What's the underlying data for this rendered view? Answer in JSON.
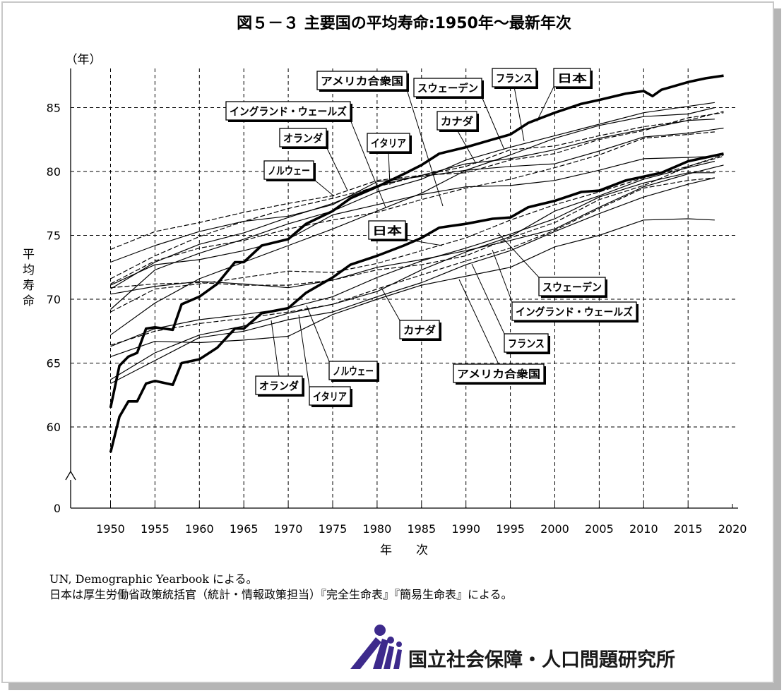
{
  "chart_data": {
    "type": "line",
    "title": "図５－３ 主要国の平均寿命:1950年～最新年次",
    "ylabel": "平均寿命",
    "ylabel_unit": "（年）",
    "xlabel": "年　　次",
    "xlim": [
      1946,
      2020
    ],
    "ylim": [
      0,
      88
    ],
    "axis_break": true,
    "grid": true,
    "x_ticks": [
      1950,
      1955,
      1960,
      1965,
      1970,
      1975,
      1980,
      1985,
      1990,
      1995,
      2000,
      2005,
      2010,
      2015,
      2020
    ],
    "y_ticks": [
      0,
      60,
      65,
      70,
      75,
      80,
      85
    ],
    "series": [
      {
        "name": "日本",
        "sex": "female",
        "style": "bold",
        "x": [
          1950,
          1951,
          1952,
          1953,
          1954,
          1955,
          1957,
          1958,
          1960,
          1962,
          1964,
          1965,
          1967,
          1970,
          1972,
          1975,
          1977,
          1980,
          1983,
          1985,
          1987,
          1990,
          1993,
          1995,
          1997,
          2000,
          2003,
          2005,
          2008,
          2010,
          2011,
          2012,
          2015,
          2017,
          2019
        ],
        "y": [
          61.5,
          64.8,
          65.5,
          65.8,
          67.7,
          67.8,
          67.6,
          69.6,
          70.2,
          71.2,
          72.9,
          72.9,
          74.2,
          74.7,
          75.9,
          76.9,
          77.9,
          78.8,
          79.8,
          80.5,
          81.4,
          81.9,
          82.5,
          82.9,
          83.8,
          84.6,
          85.3,
          85.6,
          86.1,
          86.3,
          85.9,
          86.4,
          87.0,
          87.3,
          87.5
        ]
      },
      {
        "name": "日本",
        "sex": "male",
        "style": "bold",
        "x": [
          1950,
          1951,
          1952,
          1953,
          1954,
          1955,
          1957,
          1958,
          1960,
          1962,
          1964,
          1965,
          1967,
          1970,
          1972,
          1975,
          1977,
          1980,
          1983,
          1985,
          1987,
          1990,
          1993,
          1995,
          1997,
          2000,
          2003,
          2005,
          2008,
          2010,
          2012,
          2015,
          2017,
          2019
        ],
        "y": [
          58.0,
          60.8,
          62.0,
          62.0,
          63.4,
          63.6,
          63.3,
          65.0,
          65.3,
          66.2,
          67.7,
          67.7,
          68.9,
          69.3,
          70.5,
          71.7,
          72.7,
          73.4,
          74.2,
          74.8,
          75.6,
          75.9,
          76.3,
          76.4,
          77.2,
          77.7,
          78.4,
          78.5,
          79.3,
          79.6,
          79.9,
          80.8,
          81.1,
          81.4
        ]
      },
      {
        "name": "アメリカ合衆国",
        "sex": "female",
        "style": "thin",
        "x": [
          1950,
          1955,
          1960,
          1965,
          1970,
          1975,
          1980,
          1985,
          1990,
          1995,
          2000,
          2005,
          2010,
          2015,
          2018
        ],
        "y": [
          71.1,
          72.7,
          73.1,
          73.8,
          74.7,
          76.6,
          77.4,
          78.2,
          78.8,
          78.9,
          79.3,
          80.1,
          81.0,
          81.1,
          81.2
        ]
      },
      {
        "name": "アメリカ合衆国",
        "sex": "male",
        "style": "thin",
        "x": [
          1950,
          1955,
          1960,
          1965,
          1970,
          1975,
          1980,
          1985,
          1990,
          1995,
          2000,
          2005,
          2010,
          2015,
          2018
        ],
        "y": [
          65.5,
          66.7,
          66.6,
          66.8,
          67.1,
          68.8,
          70.0,
          71.1,
          71.8,
          72.5,
          74.1,
          75.0,
          76.2,
          76.3,
          76.2
        ]
      },
      {
        "name": "フランス",
        "sex": "female",
        "style": "thin",
        "x": [
          1950,
          1955,
          1960,
          1965,
          1970,
          1975,
          1980,
          1985,
          1990,
          1995,
          2000,
          2005,
          2010,
          2015,
          2018
        ],
        "y": [
          69.2,
          72.3,
          73.6,
          74.7,
          75.9,
          76.9,
          78.4,
          79.4,
          80.9,
          81.9,
          82.8,
          83.7,
          84.6,
          85.1,
          85.4
        ]
      },
      {
        "name": "フランス",
        "sex": "male",
        "style": "thin",
        "x": [
          1950,
          1955,
          1960,
          1965,
          1970,
          1975,
          1980,
          1985,
          1990,
          1995,
          2000,
          2005,
          2010,
          2015,
          2018
        ],
        "y": [
          63.4,
          65.2,
          67.0,
          67.5,
          68.4,
          69.0,
          70.2,
          71.3,
          72.7,
          73.8,
          75.3,
          76.7,
          78.0,
          79.0,
          79.5
        ]
      },
      {
        "name": "スウェーデン",
        "sex": "female",
        "style": "dashed",
        "x": [
          1950,
          1955,
          1960,
          1965,
          1970,
          1975,
          1980,
          1985,
          1990,
          1995,
          2000,
          2005,
          2010,
          2015,
          2019
        ],
        "y": [
          71.6,
          73.4,
          74.9,
          76.1,
          77.1,
          77.9,
          78.8,
          79.7,
          80.4,
          81.7,
          82.0,
          82.8,
          83.5,
          84.0,
          84.7
        ]
      },
      {
        "name": "スウェーデン",
        "sex": "male",
        "style": "dashed",
        "x": [
          1950,
          1955,
          1960,
          1965,
          1970,
          1975,
          1980,
          1985,
          1990,
          1995,
          2000,
          2005,
          2010,
          2015,
          2019
        ],
        "y": [
          69.0,
          70.8,
          71.2,
          71.7,
          72.2,
          72.1,
          72.8,
          73.8,
          74.8,
          76.2,
          77.4,
          78.4,
          79.5,
          80.4,
          81.3
        ]
      },
      {
        "name": "イングランド・ウェールズ",
        "sex": "female",
        "style": "dashed",
        "x": [
          1950,
          1955,
          1960,
          1965,
          1970,
          1975,
          1980,
          1985,
          1990,
          1995,
          2000,
          2005,
          2010,
          2015,
          2018
        ],
        "y": [
          71.2,
          73.0,
          74.0,
          74.6,
          75.5,
          76.2,
          76.8,
          77.8,
          78.7,
          79.4,
          80.3,
          81.3,
          82.6,
          82.9,
          83.1
        ]
      },
      {
        "name": "イングランド・ウェールズ",
        "sex": "male",
        "style": "dashed",
        "x": [
          1950,
          1955,
          1960,
          1965,
          1970,
          1975,
          1980,
          1985,
          1990,
          1995,
          2000,
          2005,
          2010,
          2015,
          2018
        ],
        "y": [
          66.4,
          67.5,
          68.1,
          68.5,
          69.0,
          69.6,
          70.8,
          71.9,
          73.0,
          74.0,
          75.4,
          77.1,
          78.7,
          79.3,
          79.5
        ]
      },
      {
        "name": "カナダ",
        "sex": "female",
        "style": "thin",
        "x": [
          1950,
          1955,
          1960,
          1965,
          1970,
          1975,
          1980,
          1985,
          1990,
          1995,
          2000,
          2005,
          2010,
          2015,
          2018
        ],
        "y": [
          70.8,
          72.9,
          74.3,
          75.2,
          76.4,
          77.5,
          78.9,
          79.7,
          80.6,
          81.0,
          81.7,
          82.6,
          83.3,
          84.0,
          84.1
        ]
      },
      {
        "name": "カナダ",
        "sex": "male",
        "style": "thin",
        "x": [
          1950,
          1955,
          1960,
          1965,
          1970,
          1975,
          1980,
          1985,
          1990,
          1995,
          2000,
          2005,
          2010,
          2015,
          2018
        ],
        "y": [
          66.3,
          67.7,
          68.4,
          68.8,
          69.3,
          70.2,
          71.7,
          73.0,
          74.0,
          75.1,
          76.3,
          78.0,
          79.1,
          79.9,
          79.9
        ]
      },
      {
        "name": "オランダ",
        "sex": "female",
        "style": "thin",
        "x": [
          1950,
          1955,
          1960,
          1965,
          1970,
          1975,
          1980,
          1985,
          1990,
          1995,
          2000,
          2005,
          2010,
          2015,
          2019
        ],
        "y": [
          72.9,
          74.2,
          75.3,
          76.1,
          76.5,
          77.4,
          79.2,
          79.6,
          80.1,
          80.4,
          80.6,
          81.6,
          82.7,
          83.0,
          83.4
        ]
      },
      {
        "name": "オランダ",
        "sex": "male",
        "style": "thin",
        "x": [
          1950,
          1955,
          1960,
          1965,
          1970,
          1975,
          1980,
          1985,
          1990,
          1995,
          2000,
          2005,
          2010,
          2015,
          2019
        ],
        "y": [
          70.4,
          71.0,
          71.4,
          71.2,
          70.9,
          71.5,
          72.5,
          73.1,
          73.8,
          74.6,
          75.5,
          77.2,
          78.8,
          79.8,
          80.5
        ]
      },
      {
        "name": "イタリア",
        "sex": "female",
        "style": "thin",
        "x": [
          1950,
          1955,
          1960,
          1965,
          1970,
          1975,
          1980,
          1985,
          1990,
          1995,
          2000,
          2005,
          2010,
          2015,
          2018
        ],
        "y": [
          67.2,
          69.7,
          71.6,
          72.9,
          74.2,
          75.5,
          76.9,
          78.3,
          80.1,
          81.3,
          82.6,
          83.6,
          84.3,
          84.5,
          85.0
        ]
      },
      {
        "name": "イタリア",
        "sex": "male",
        "style": "thin",
        "x": [
          1950,
          1955,
          1960,
          1965,
          1970,
          1975,
          1980,
          1985,
          1990,
          1995,
          2000,
          2005,
          2010,
          2015,
          2018
        ],
        "y": [
          63.7,
          65.8,
          67.2,
          67.9,
          68.9,
          69.6,
          70.6,
          72.3,
          73.7,
          74.9,
          76.9,
          78.1,
          79.4,
          80.3,
          80.8
        ]
      },
      {
        "name": "ノルウェー",
        "sex": "female",
        "style": "dashed",
        "x": [
          1950,
          1955,
          1960,
          1965,
          1970,
          1975,
          1980,
          1985,
          1990,
          1995,
          2000,
          2005,
          2010,
          2015,
          2019
        ],
        "y": [
          73.9,
          75.3,
          76.0,
          76.8,
          77.5,
          78.1,
          79.3,
          79.7,
          79.9,
          80.9,
          81.4,
          82.5,
          83.2,
          84.2,
          84.6
        ]
      },
      {
        "name": "ノルウェー",
        "sex": "male",
        "style": "dashed",
        "x": [
          1950,
          1955,
          1960,
          1965,
          1970,
          1975,
          1980,
          1985,
          1990,
          1995,
          2000,
          2005,
          2010,
          2015,
          2019
        ],
        "y": [
          70.9,
          71.2,
          71.3,
          71.1,
          71.1,
          71.5,
          72.3,
          72.7,
          73.4,
          74.8,
          76.0,
          77.8,
          78.9,
          80.4,
          81.2
        ]
      }
    ],
    "annotations": [
      {
        "text": "アメリカ合衆国",
        "target": "female"
      },
      {
        "text": "スウェーデン",
        "target": "female"
      },
      {
        "text": "フランス",
        "target": "female"
      },
      {
        "text": "日本",
        "target": "female"
      },
      {
        "text": "イングランド・ウェールズ",
        "target": "female"
      },
      {
        "text": "カナダ",
        "target": "female"
      },
      {
        "text": "オランダ",
        "target": "female"
      },
      {
        "text": "イタリア",
        "target": "female"
      },
      {
        "text": "ノルウェー",
        "target": "female"
      },
      {
        "text": "日本",
        "target": "male"
      },
      {
        "text": "スウェーデン",
        "target": "male"
      },
      {
        "text": "イングランド・ウェールズ",
        "target": "male"
      },
      {
        "text": "カナダ",
        "target": "male"
      },
      {
        "text": "フランス",
        "target": "male"
      },
      {
        "text": "アメリカ合衆国",
        "target": "male"
      },
      {
        "text": "ノルウェー",
        "target": "male"
      },
      {
        "text": "オランダ",
        "target": "male"
      },
      {
        "text": "イタリア",
        "target": "male"
      }
    ]
  },
  "source_notes": [
    "UN, Demographic Yearbook による。",
    "日本は厚生労働省政策統括官（統計・情報政策担当）『完全生命表』『簡易生命表』による。"
  ],
  "organization": "国立社会保障・人口問題研究所",
  "colors": {
    "line": "#000000",
    "grid": "#000000",
    "logo": "#3d2a8c"
  }
}
